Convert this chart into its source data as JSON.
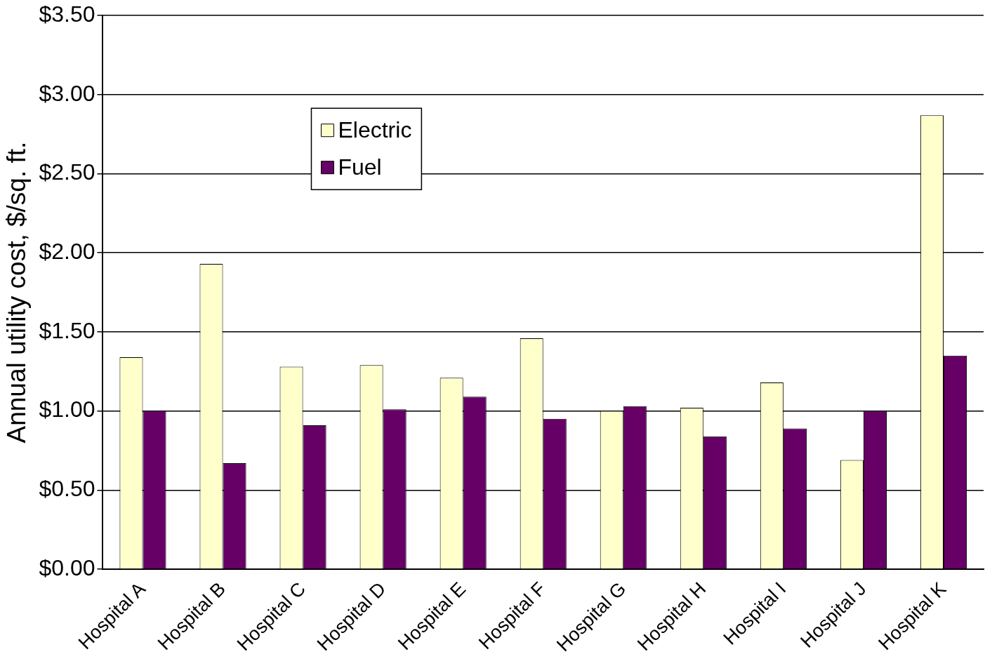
{
  "chart_data": {
    "type": "bar",
    "ylabel": "Annual utility cost, $/sq. ft.",
    "categories": [
      "Hospital A",
      "Hospital B",
      "Hospital C",
      "Hospital D",
      "Hospital E",
      "Hospital F",
      "Hospital G",
      "Hospital H",
      "Hospital I",
      "Hospital J",
      "Hospital K"
    ],
    "series": [
      {
        "name": "Electric",
        "color": "#ffffcc",
        "values": [
          1.34,
          1.93,
          1.28,
          1.29,
          1.21,
          1.46,
          1.0,
          1.02,
          1.18,
          0.69,
          2.87
        ]
      },
      {
        "name": "Fuel",
        "color": "#660066",
        "values": [
          1.0,
          0.67,
          0.91,
          1.01,
          1.09,
          0.95,
          1.03,
          0.84,
          0.89,
          1.0,
          1.35
        ]
      }
    ],
    "ylim": [
      0,
      3.5
    ],
    "yticks": [
      {
        "value": 0,
        "label": "$0.00"
      },
      {
        "value": 0.5,
        "label": "$0.50"
      },
      {
        "value": 1,
        "label": "$1.00"
      },
      {
        "value": 1.5,
        "label": "$1.50"
      },
      {
        "value": 2,
        "label": "$2.00"
      },
      {
        "value": 2.5,
        "label": "$2.50"
      },
      {
        "value": 3,
        "label": "$3.00"
      },
      {
        "value": 3.5,
        "label": "$3.50"
      }
    ],
    "grid": "y",
    "legend": "top left"
  }
}
